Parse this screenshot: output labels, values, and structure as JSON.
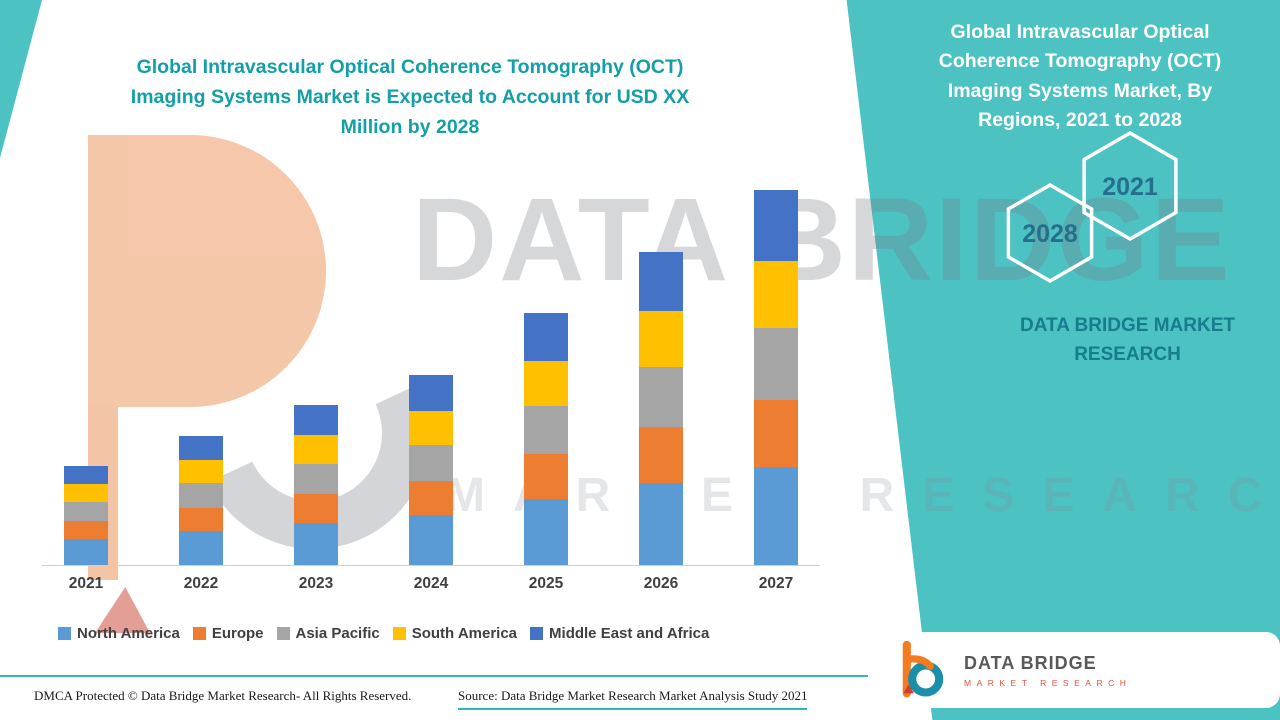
{
  "colors": {
    "teal_panel": "#4CC2C3",
    "teal_heading": "#12A0A6",
    "teal_line": "#2FB7B8",
    "hex_year": "#256F8E",
    "panel_brand": "#177C8C",
    "axis_text": "#404040",
    "footer_text": "#1a1a1a"
  },
  "main": {
    "title": "Global Intravascular Optical Coherence Tomography (OCT)\nImaging Systems Market is Expected to Account for USD XX\nMillion by 2028"
  },
  "watermark": {
    "line1": "DATA BRIDGE",
    "line2": "MARKET RESEARCH"
  },
  "chart_data": {
    "type": "bar",
    "stacked": true,
    "title": "Global Intravascular Optical Coherence Tomography (OCT) Imaging Systems Market is Expected to Account for USD XX Million by 2028",
    "categories": [
      "2021",
      "2022",
      "2023",
      "2024",
      "2025",
      "2026",
      "2027"
    ],
    "series": [
      {
        "name": "North America",
        "color": "#5B9BD5",
        "values": [
          26,
          34,
          42,
          50,
          66,
          82,
          98
        ]
      },
      {
        "name": "Europe",
        "color": "#ED7D31",
        "values": [
          18,
          23,
          29,
          34,
          45,
          56,
          67
        ]
      },
      {
        "name": "Asia Pacific",
        "color": "#A5A5A5",
        "values": [
          19,
          25,
          30,
          36,
          48,
          60,
          72
        ]
      },
      {
        "name": "South America",
        "color": "#FFC000",
        "values": [
          18,
          23,
          29,
          34,
          45,
          56,
          67
        ]
      },
      {
        "name": "Middle East and Africa",
        "color": "#4472C4",
        "values": [
          18,
          24,
          30,
          36,
          48,
          59,
          71
        ]
      }
    ],
    "xlabel": "",
    "ylabel": "",
    "ylim": [
      0,
      400
    ],
    "y_axis_visible": false,
    "grid": false,
    "legend_position": "bottom"
  },
  "panel": {
    "title": "Global Intravascular Optical\nCoherence Tomography (OCT)\nImaging Systems Market, By\nRegions, 2021 to 2028",
    "year_left": "2028",
    "year_right": "2021",
    "brand": "DATA BRIDGE MARKET\nRESEARCH"
  },
  "footer": {
    "dmca": "DMCA Protected © Data Bridge Market Research- All Rights Reserved.",
    "source": "Source: Data Bridge Market Research Market Analysis Study 2021"
  },
  "logo": {
    "name": "DATA BRIDGE",
    "sub": "MARKET RESEARCH"
  }
}
